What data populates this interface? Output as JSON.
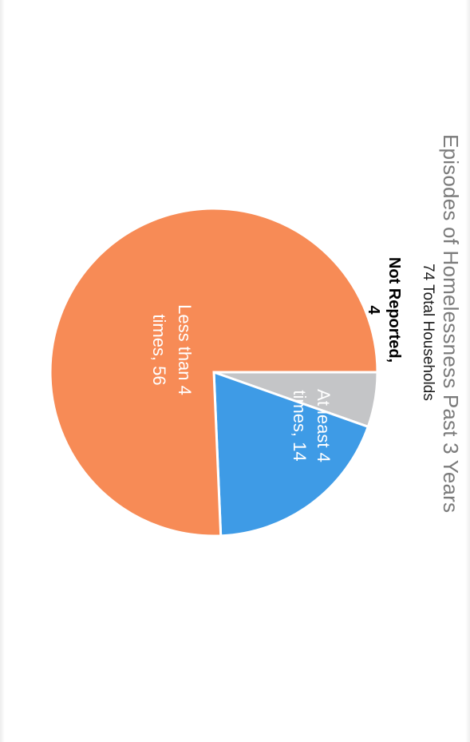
{
  "chart_data": {
    "type": "pie",
    "title": "Episodes of Homelessness Past 3 Years",
    "subtitle": "74 Total Households",
    "slices": [
      {
        "label": "Not Reported,",
        "value": 4,
        "display": "4",
        "color": "#c4c5c7",
        "label_style": "outside"
      },
      {
        "label": "At least 4 times,",
        "value": 14,
        "display": "14",
        "color": "#3e9be6",
        "label_style": "inside"
      },
      {
        "label": "Less than 4 times,",
        "value": 56,
        "display": "56",
        "color": "#f78b56",
        "label_style": "inside"
      }
    ]
  }
}
